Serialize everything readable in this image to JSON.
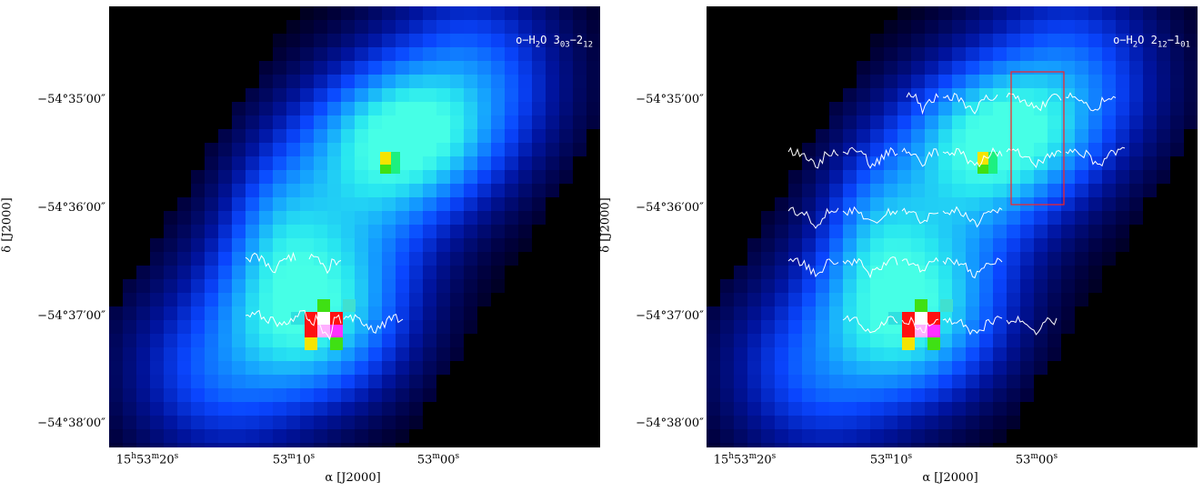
{
  "panels": [
    {
      "line_label": {
        "prefix": "o−H",
        "sub1": "2",
        "mid": "O 3",
        "sub2": "03",
        "dash": "−2",
        "sub3": "12"
      },
      "yticks": [
        "−54°35′00″",
        "−54°36′00″",
        "−54°37′00″",
        "−54°38′00″"
      ],
      "xticks": [
        {
          "pre": "15",
          "s1": "h",
          "mid": "53",
          "s2": "m",
          "post": "20",
          "s3": "s"
        },
        {
          "pre": "",
          "s1": "",
          "mid": "53",
          "s2": "m",
          "post": "10",
          "s3": "s"
        },
        {
          "pre": "",
          "s1": "",
          "mid": "53",
          "s2": "m",
          "post": "00",
          "s3": "s"
        }
      ],
      "ylabel": "δ [J2000]",
      "xlabel": "α [J2000]",
      "has_box": false
    },
    {
      "line_label": {
        "prefix": "o−H",
        "sub1": "2",
        "mid": "O 2",
        "sub2": "12",
        "dash": "−1",
        "sub3": "01"
      },
      "yticks": [
        "−54°35′00″",
        "−54°36′00″",
        "−54°37′00″",
        "−54°38′00″"
      ],
      "xticks": [
        {
          "pre": "15",
          "s1": "h",
          "mid": "53",
          "s2": "m",
          "post": "20",
          "s3": "s"
        },
        {
          "pre": "",
          "s1": "",
          "mid": "53",
          "s2": "m",
          "post": "10",
          "s3": "s"
        },
        {
          "pre": "",
          "s1": "",
          "mid": "53",
          "s2": "m",
          "post": "00",
          "s3": "s"
        }
      ],
      "ylabel": "δ [J2000]",
      "xlabel": "α [J2000]",
      "has_box": true
    }
  ],
  "colors": {
    "background": "#000000",
    "spectra": "#ffffff",
    "box": "#ff2020"
  }
}
